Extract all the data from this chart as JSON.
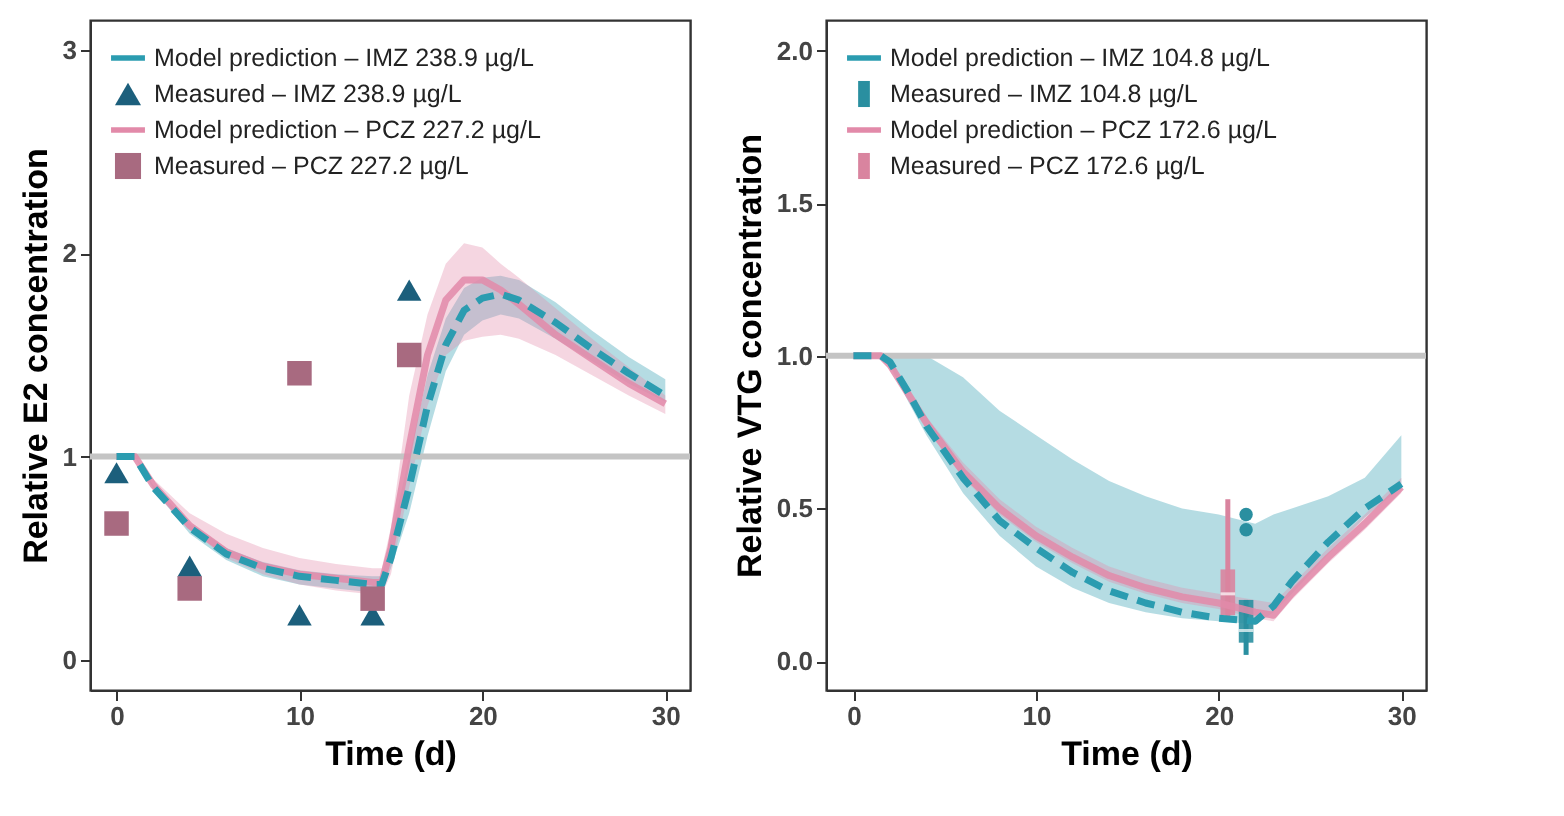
{
  "chart_data": [
    {
      "type": "line",
      "xlabel": "Time (d)",
      "ylabel": "Relative E2 concentration",
      "xlim": [
        -1.45,
        31.35
      ],
      "ylim": [
        -0.15,
        3.15
      ],
      "xticks": [
        0,
        10,
        20,
        30
      ],
      "yticks": [
        0,
        1,
        2,
        3
      ],
      "grid": false,
      "legend": "top left",
      "ref_lines": [
        {
          "axis": "y",
          "value": 1,
          "color": "#c4c4c4"
        }
      ],
      "series": [
        {
          "name": "Model prediction – IMZ 238.9 µg/L",
          "color": "#2b9cb0",
          "line_style": "dashed",
          "x": [
            0,
            1,
            2,
            4,
            6,
            8,
            10,
            12,
            14,
            14.5,
            15,
            16,
            17,
            18,
            19,
            20,
            21,
            22,
            24,
            26,
            28,
            30
          ],
          "values": [
            1,
            1,
            0.85,
            0.65,
            0.52,
            0.45,
            0.41,
            0.39,
            0.37,
            0.37,
            0.5,
            0.85,
            1.25,
            1.55,
            1.72,
            1.78,
            1.8,
            1.77,
            1.66,
            1.53,
            1.41,
            1.3
          ],
          "lower": [
            1,
            1,
            0.84,
            0.62,
            0.49,
            0.41,
            0.37,
            0.35,
            0.33,
            0.33,
            0.45,
            0.72,
            1.1,
            1.42,
            1.6,
            1.67,
            1.7,
            1.68,
            1.58,
            1.47,
            1.36,
            1.27
          ],
          "upper": [
            1,
            1,
            0.86,
            0.67,
            0.55,
            0.48,
            0.44,
            0.42,
            0.41,
            0.41,
            0.6,
            1.0,
            1.4,
            1.68,
            1.83,
            1.88,
            1.89,
            1.87,
            1.76,
            1.62,
            1.49,
            1.38
          ]
        },
        {
          "name": "Measured – IMZ 238.9 µg/L",
          "type": "scatter",
          "color": "#1c5f7c",
          "marker": "triangle",
          "x": [
            0,
            4,
            10,
            14,
            16
          ],
          "values": [
            0.92,
            0.46,
            0.22,
            0.22,
            1.82
          ]
        },
        {
          "name": "Model prediction – PCZ 227.2 µg/L",
          "color": "#e28aa9",
          "line_style": "solid",
          "x": [
            0,
            1,
            2,
            4,
            6,
            8,
            10,
            12,
            14,
            14.5,
            15,
            16,
            17,
            18,
            19,
            20,
            21,
            22,
            24,
            26,
            28,
            30
          ],
          "values": [
            1,
            1,
            0.86,
            0.66,
            0.53,
            0.46,
            0.42,
            0.4,
            0.38,
            0.38,
            0.55,
            1.05,
            1.5,
            1.77,
            1.87,
            1.87,
            1.82,
            1.75,
            1.6,
            1.48,
            1.36,
            1.26
          ],
          "lower": [
            1,
            1,
            0.85,
            0.64,
            0.5,
            0.42,
            0.37,
            0.34,
            0.32,
            0.32,
            0.42,
            0.85,
            1.25,
            1.5,
            1.57,
            1.59,
            1.6,
            1.58,
            1.5,
            1.4,
            1.3,
            1.21
          ],
          "upper": [
            1,
            1,
            0.89,
            0.72,
            0.62,
            0.55,
            0.5,
            0.47,
            0.45,
            0.45,
            0.65,
            1.3,
            1.7,
            1.95,
            2.05,
            2.03,
            1.95,
            1.88,
            1.73,
            1.58,
            1.44,
            1.3
          ]
        },
        {
          "name": "Measured – PCZ 227.2 µg/L",
          "type": "scatter",
          "color": "#a86a80",
          "marker": "square",
          "x": [
            0,
            4,
            10,
            14,
            16
          ],
          "values": [
            0.67,
            0.35,
            1.41,
            0.3,
            1.5
          ]
        }
      ]
    },
    {
      "type": "line",
      "xlabel": "Time (d)",
      "ylabel": "Relative VTG concentration",
      "xlim": [
        -1.5,
        31.35
      ],
      "ylim": [
        -0.095,
        2.1
      ],
      "xticks": [
        0,
        10,
        20,
        30
      ],
      "yticks": [
        {
          "value": 0,
          "label": "0.0"
        },
        0.5,
        {
          "value": 1,
          "label": "1.0"
        },
        1.5,
        {
          "value": 2,
          "label": "2.0"
        }
      ],
      "grid": false,
      "legend": "top left",
      "ref_lines": [
        {
          "axis": "y",
          "value": 1,
          "color": "#c4c4c4"
        }
      ],
      "series": [
        {
          "name": "Model prediction – IMZ 104.8 µg/L",
          "color": "#2b9cb0",
          "line_style": "dashed",
          "x": [
            0,
            1.5,
            2,
            3,
            4,
            6,
            8,
            10,
            12,
            14,
            16,
            18,
            20,
            22,
            23,
            24,
            26,
            28,
            30
          ],
          "values": [
            1,
            1,
            0.98,
            0.88,
            0.77,
            0.6,
            0.46,
            0.37,
            0.29,
            0.23,
            0.19,
            0.16,
            0.14,
            0.13,
            0.18,
            0.26,
            0.39,
            0.5,
            0.58
          ],
          "lower": [
            1,
            1,
            0.97,
            0.85,
            0.74,
            0.55,
            0.41,
            0.31,
            0.24,
            0.19,
            0.16,
            0.14,
            0.13,
            0.12,
            0.16,
            0.22,
            0.35,
            0.47,
            0.57
          ],
          "upper": [
            1,
            1,
            1,
            1,
            1,
            0.93,
            0.82,
            0.74,
            0.66,
            0.59,
            0.54,
            0.5,
            0.48,
            0.45,
            0.48,
            0.5,
            0.54,
            0.6,
            0.74
          ]
        },
        {
          "name": "Measured – IMZ 104.8 µg/L",
          "type": "box",
          "color": "#2a8fa0",
          "x": [
            21.5
          ],
          "boxes": [
            {
              "low": 0.02,
              "q1": 0.06,
              "median": 0.1,
              "q3": 0.2,
              "high": 0.2,
              "outliers": [
                0.43,
                0.48
              ]
            }
          ]
        },
        {
          "name": "Model prediction – PCZ 172.6 µg/L",
          "color": "#e28aa9",
          "line_style": "solid",
          "x": [
            0,
            1.5,
            2,
            4,
            6,
            8,
            10,
            12,
            14,
            16,
            18,
            20,
            22,
            23,
            24,
            26,
            28,
            30
          ],
          "values": [
            1,
            1,
            0.97,
            0.78,
            0.62,
            0.5,
            0.41,
            0.34,
            0.28,
            0.24,
            0.21,
            0.19,
            0.16,
            0.15,
            0.22,
            0.34,
            0.45,
            0.57
          ],
          "lower": [
            1,
            1,
            0.96,
            0.76,
            0.6,
            0.48,
            0.39,
            0.32,
            0.26,
            0.22,
            0.19,
            0.17,
            0.14,
            0.13,
            0.2,
            0.32,
            0.43,
            0.55
          ],
          "upper": [
            1,
            1,
            0.98,
            0.8,
            0.65,
            0.53,
            0.44,
            0.37,
            0.31,
            0.27,
            0.24,
            0.22,
            0.2,
            0.19,
            0.25,
            0.37,
            0.48,
            0.6
          ]
        },
        {
          "name": "Measured – PCZ 172.6 µg/L",
          "type": "box",
          "color": "#d9849f",
          "x": [
            20.5
          ],
          "boxes": [
            {
              "low": 0.13,
              "q1": 0.15,
              "median": 0.22,
              "q3": 0.3,
              "high": 0.53
            }
          ]
        }
      ]
    }
  ]
}
